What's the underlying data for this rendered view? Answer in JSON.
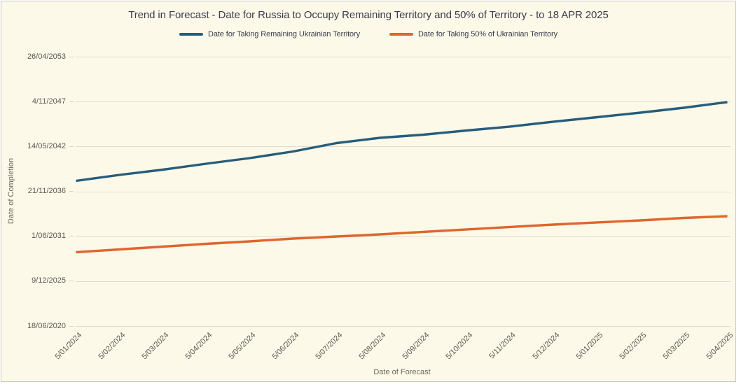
{
  "title": "Trend in Forecast - Date for Russia to Occupy Remaining Territory and 50% of Territory - to 18 APR 2025",
  "colors": {
    "panel_background": "#fdf9e8",
    "panel_border": "#c8c7c3",
    "gridline": "#dfdcd3",
    "series_remaining": "#265d7c",
    "series_fifty_percent": "#df662d"
  },
  "chart_data": {
    "type": "line",
    "title": "Trend in Forecast - Date for Russia to Occupy Remaining Territory and 50% of Territory - to 18 APR 2025",
    "xlabel": "Date of Forecast",
    "ylabel": "Date of Completion",
    "grid": "horizontal-only",
    "legend_position": "top-center",
    "x_categories": [
      "5/01/2024",
      "5/02/2024",
      "5/03/2024",
      "5/04/2024",
      "5/05/2024",
      "5/06/2024",
      "5/07/2024",
      "5/08/2024",
      "5/09/2024",
      "5/10/2024",
      "5/11/2024",
      "5/12/2024",
      "5/01/2025",
      "5/02/2025",
      "5/03/2025",
      "5/04/2025"
    ],
    "y_axis": {
      "epoch_date": "2020-06-18",
      "range_days": 12000,
      "tick_day_offsets": [
        0,
        2000,
        4000,
        6000,
        8000,
        10000,
        12000
      ],
      "tick_labels": [
        "18/06/2020",
        "9/12/2025",
        "1/06/2031",
        "21/11/2036",
        "14/05/2042",
        "4/11/2047",
        "26/04/2053"
      ]
    },
    "series": [
      {
        "name": "Date for Taking Remaining Ukrainian Territory",
        "color": "#265d7c",
        "values": [
          "2038-03-03",
          "2038-11-23",
          "2039-07-15",
          "2040-04-05",
          "2040-12-10",
          "2041-10-02",
          "2042-10-11",
          "2043-06-03",
          "2043-10-21",
          "2044-04-26",
          "2044-10-15",
          "2045-05-21",
          "2045-12-09",
          "2046-06-30",
          "2047-02-03",
          "2047-10-11"
        ]
      },
      {
        "name": "Date for Taking 50% of Ukrainian Territory",
        "color": "#df662d",
        "values": [
          "2029-06-20",
          "2029-10-23",
          "2030-02-25",
          "2030-06-29",
          "2030-10-16",
          "2031-02-18",
          "2031-05-23",
          "2031-08-24",
          "2031-12-12",
          "2032-03-30",
          "2032-07-17",
          "2032-11-03",
          "2033-02-05",
          "2033-05-09",
          "2033-08-26",
          "2033-11-12"
        ]
      }
    ]
  }
}
